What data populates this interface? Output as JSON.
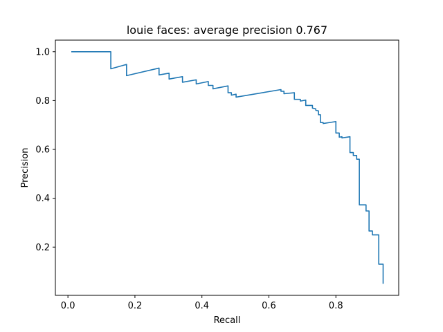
{
  "chart_data": {
    "type": "line",
    "title": "louie faces: average precision 0.767",
    "xlabel": "Recall",
    "ylabel": "Precision",
    "xlim": [
      -0.0375,
      0.9875
    ],
    "ylim": [
      0.0025,
      1.0475
    ],
    "grid": false,
    "xticks": [
      0.0,
      0.2,
      0.4,
      0.6,
      0.8
    ],
    "xtick_labels": [
      "0.0",
      "0.2",
      "0.4",
      "0.6",
      "0.8"
    ],
    "yticks": [
      0.2,
      0.4,
      0.6,
      0.8,
      1.0
    ],
    "ytick_labels": [
      "0.2",
      "0.4",
      "0.6",
      "0.8",
      "1.0"
    ],
    "series": [
      {
        "color": "#1f77b4",
        "points": [
          [
            0.01,
            1.0
          ],
          [
            0.128,
            1.0
          ],
          [
            0.128,
            0.93
          ],
          [
            0.175,
            0.948
          ],
          [
            0.175,
            0.902
          ],
          [
            0.272,
            0.933
          ],
          [
            0.272,
            0.905
          ],
          [
            0.302,
            0.912
          ],
          [
            0.302,
            0.888
          ],
          [
            0.342,
            0.898
          ],
          [
            0.342,
            0.875
          ],
          [
            0.383,
            0.885
          ],
          [
            0.383,
            0.868
          ],
          [
            0.419,
            0.878
          ],
          [
            0.419,
            0.862
          ],
          [
            0.433,
            0.862
          ],
          [
            0.433,
            0.848
          ],
          [
            0.478,
            0.86
          ],
          [
            0.478,
            0.832
          ],
          [
            0.488,
            0.832
          ],
          [
            0.488,
            0.822
          ],
          [
            0.502,
            0.826
          ],
          [
            0.502,
            0.814
          ],
          [
            0.636,
            0.845
          ],
          [
            0.636,
            0.838
          ],
          [
            0.645,
            0.838
          ],
          [
            0.645,
            0.828
          ],
          [
            0.676,
            0.832
          ],
          [
            0.676,
            0.805
          ],
          [
            0.694,
            0.805
          ],
          [
            0.694,
            0.798
          ],
          [
            0.71,
            0.802
          ],
          [
            0.71,
            0.78
          ],
          [
            0.73,
            0.78
          ],
          [
            0.73,
            0.769
          ],
          [
            0.74,
            0.766
          ],
          [
            0.74,
            0.76
          ],
          [
            0.748,
            0.758
          ],
          [
            0.748,
            0.742
          ],
          [
            0.754,
            0.742
          ],
          [
            0.754,
            0.71
          ],
          [
            0.762,
            0.71
          ],
          [
            0.762,
            0.706
          ],
          [
            0.8,
            0.714
          ],
          [
            0.8,
            0.667
          ],
          [
            0.81,
            0.667
          ],
          [
            0.81,
            0.65
          ],
          [
            0.818,
            0.652
          ],
          [
            0.818,
            0.647
          ],
          [
            0.842,
            0.652
          ],
          [
            0.842,
            0.587
          ],
          [
            0.852,
            0.587
          ],
          [
            0.852,
            0.575
          ],
          [
            0.862,
            0.575
          ],
          [
            0.862,
            0.56
          ],
          [
            0.87,
            0.56
          ],
          [
            0.87,
            0.373
          ],
          [
            0.89,
            0.373
          ],
          [
            0.89,
            0.348
          ],
          [
            0.899,
            0.348
          ],
          [
            0.899,
            0.266
          ],
          [
            0.909,
            0.266
          ],
          [
            0.909,
            0.25
          ],
          [
            0.928,
            0.25
          ],
          [
            0.928,
            0.13
          ],
          [
            0.941,
            0.13
          ],
          [
            0.941,
            0.05
          ]
        ]
      }
    ]
  }
}
